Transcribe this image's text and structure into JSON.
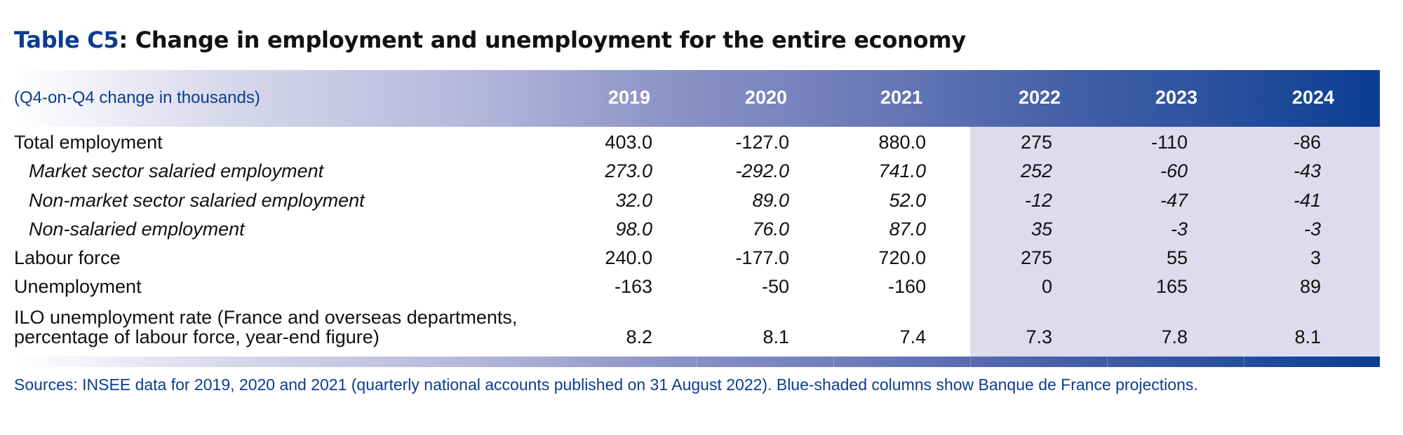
{
  "title": {
    "id": "Table C5",
    "text": ": Change in employment and unemployment for the entire economy"
  },
  "header": {
    "unit_label": "(Q4-on-Q4 change in thousands)",
    "years": [
      "2019",
      "2020",
      "2021",
      "2022",
      "2023",
      "2024"
    ],
    "projection_years": [
      "2022",
      "2023",
      "2024"
    ]
  },
  "rows": [
    {
      "label": "Total employment",
      "italic": false,
      "values": [
        "403.0",
        "-127.0",
        "880.0",
        "275",
        "-110",
        "-86"
      ]
    },
    {
      "label": "Market sector salaried employment",
      "italic": true,
      "values": [
        "273.0",
        "-292.0",
        "741.0",
        "252",
        "-60",
        "-43"
      ]
    },
    {
      "label": "Non-market sector salaried employment",
      "italic": true,
      "values": [
        "32.0",
        "89.0",
        "52.0",
        "-12",
        "-47",
        "-41"
      ]
    },
    {
      "label": "Non-salaried employment",
      "italic": true,
      "values": [
        "98.0",
        "76.0",
        "87.0",
        "35",
        "-3",
        "-3"
      ]
    },
    {
      "label": "Labour force",
      "italic": false,
      "values": [
        "240.0",
        "-177.0",
        "720.0",
        "275",
        "55",
        "3"
      ]
    },
    {
      "label": "Unemployment",
      "italic": false,
      "values": [
        "-163",
        "-50",
        "-160",
        "0",
        "165",
        "89"
      ]
    },
    {
      "label_lines": [
        "ILO unemployment rate (France and overseas departments,",
        "percentage of labour force, year-end figure)"
      ],
      "italic": false,
      "values": [
        "8.2",
        "8.1",
        "7.4",
        "7.3",
        "7.8",
        "8.1"
      ]
    }
  ],
  "source": "Sources: INSEE data for 2019, 2020 and 2021 (quarterly national accounts published on 31 August 2022). Blue-shaded columns show Banque de France projections.",
  "colors": {
    "brand_blue": "#0b3d91",
    "projection_shade": "#dcdcee",
    "text": "#111111"
  }
}
